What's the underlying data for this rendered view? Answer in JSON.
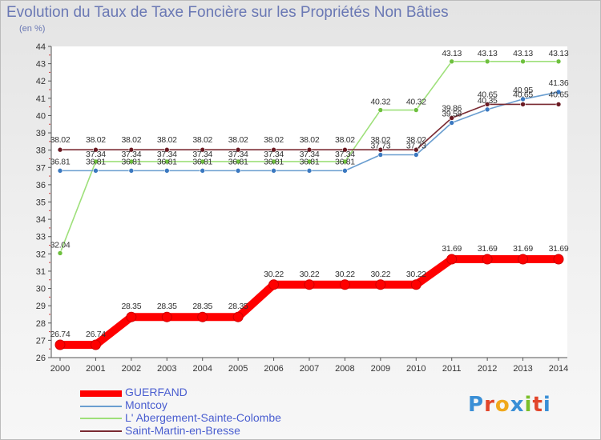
{
  "title": "Evolution du Taux de Taxe Foncière sur les Propriétés Non Bâties",
  "subtitle": "(en %)",
  "logo": {
    "text": "Proxiti",
    "colors": [
      "#3a8fd6",
      "#e2462b",
      "#f0a81c",
      "#3a8fd6",
      "#7bbf2a",
      "#e2462b",
      "#3a8fd6"
    ]
  },
  "chart_data": {
    "type": "line",
    "title": "Evolution du Taux de Taxe Foncière sur les Propriétés Non Bâties",
    "ylabel": "(en %)",
    "ylim": [
      26,
      44
    ],
    "yticks": [
      "26",
      "27",
      "28",
      "29",
      "30",
      "31",
      "32",
      "33",
      "34",
      "35",
      "36",
      "37",
      "38",
      "39",
      "40",
      "41",
      "42",
      "43",
      "44"
    ],
    "x": [
      "2000",
      "2001",
      "2002",
      "2003",
      "2004",
      "2005",
      "2006",
      "2007",
      "2008",
      "2009",
      "2010",
      "2011",
      "2012",
      "2013",
      "2014"
    ],
    "series": [
      {
        "name": "GUERFAND",
        "color": "#ff0000",
        "width": "thick",
        "values": [
          26.74,
          26.74,
          28.35,
          28.35,
          28.35,
          28.35,
          30.22,
          30.22,
          30.22,
          30.22,
          30.22,
          31.69,
          31.69,
          31.69,
          31.69
        ],
        "labels": [
          "26.74",
          "26.74",
          "28.35",
          "28.35",
          "28.35",
          "28.35",
          "30.22",
          "30.22",
          "30.22",
          "30.22",
          "30.22",
          "31.69",
          "31.69",
          "31.69",
          "31.69"
        ]
      },
      {
        "name": "Montcoy",
        "color": "#6a9ed0",
        "marker": "#3a78c0",
        "width": "thin",
        "values": [
          36.81,
          36.81,
          36.81,
          36.81,
          36.81,
          36.81,
          36.81,
          36.81,
          36.81,
          37.73,
          37.73,
          39.58,
          40.35,
          40.95,
          41.36
        ],
        "labels": [
          "36.81",
          "36.81",
          "36.81",
          "36.81",
          "36.81",
          "36.81",
          "36.81",
          "36.81",
          "36.81",
          "37.73",
          "37.73",
          "39.58",
          "40.35",
          "40.95",
          "41.36"
        ]
      },
      {
        "name": "L' Abergement-Sainte-Colombe",
        "color": "#9ee07a",
        "marker": "#6ec03e",
        "width": "thin",
        "values": [
          32.04,
          37.34,
          37.34,
          37.34,
          37.34,
          37.34,
          37.34,
          37.34,
          37.34,
          40.32,
          40.32,
          43.13,
          43.13,
          43.13,
          43.13
        ],
        "labels": [
          "32.04",
          "37.34",
          "37.34",
          "37.34",
          "37.34",
          "37.34",
          "37.34",
          "37.34",
          "37.34",
          "40.32",
          "40.32",
          "43.13",
          "43.13",
          "43.13",
          "43.13"
        ]
      },
      {
        "name": "Saint-Martin-en-Bresse",
        "color": "#7a2a32",
        "marker": "#6a1a22",
        "width": "thin",
        "values": [
          38.02,
          38.02,
          38.02,
          38.02,
          38.02,
          38.02,
          38.02,
          38.02,
          38.02,
          38.02,
          38.02,
          39.86,
          40.65,
          40.65,
          40.65
        ],
        "labels": [
          "38.02",
          "38.02",
          "38.02",
          "38.02",
          "38.02",
          "38.02",
          "38.02",
          "38.02",
          "38.02",
          "38.02",
          "38.02",
          "39.86",
          "40.65",
          "40.65",
          "40.65"
        ]
      }
    ],
    "legend_position": "bottom-left",
    "grid": false
  }
}
